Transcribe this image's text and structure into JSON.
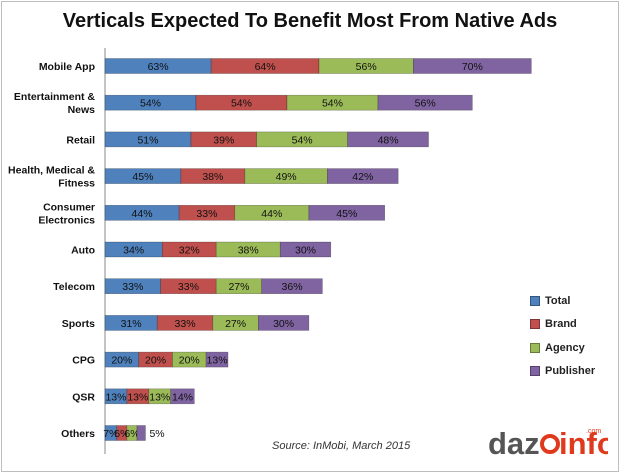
{
  "chart_data": {
    "type": "bar",
    "orientation": "horizontal",
    "stacked": true,
    "title": "Verticals Expected To Benefit Most From Native Ads",
    "categories": [
      "Mobile App",
      "Entertainment & News",
      "Retail",
      "Health, Medical & Fitness",
      "Consumer Electronics",
      "Auto",
      "Telecom",
      "Sports",
      "CPG",
      "QSR",
      "Others"
    ],
    "category_lines": [
      [
        "Mobile App"
      ],
      [
        "Entertainment &",
        "News"
      ],
      [
        "Retail"
      ],
      [
        "Health, Medical &",
        "Fitness"
      ],
      [
        "Consumer",
        "Electronics"
      ],
      [
        "Auto"
      ],
      [
        "Telecom"
      ],
      [
        "Sports"
      ],
      [
        "CPG"
      ],
      [
        "QSR"
      ],
      [
        "Others"
      ]
    ],
    "series": [
      {
        "name": "Total",
        "color": "#4f81bd",
        "values": [
          63,
          54,
          51,
          45,
          44,
          34,
          33,
          31,
          20,
          13,
          7
        ]
      },
      {
        "name": "Brand",
        "color": "#c0504d",
        "values": [
          64,
          54,
          39,
          38,
          33,
          32,
          33,
          33,
          20,
          13,
          6
        ]
      },
      {
        "name": "Agency",
        "color": "#9bbb59",
        "values": [
          56,
          54,
          54,
          49,
          44,
          38,
          27,
          27,
          20,
          13,
          6
        ]
      },
      {
        "name": "Publisher",
        "color": "#8064a2",
        "values": [
          70,
          56,
          48,
          42,
          45,
          30,
          36,
          30,
          13,
          14,
          5
        ]
      }
    ],
    "value_suffix": "%",
    "legend_position": "right",
    "grid": false
  },
  "source": "Source: InMobi, March 2015",
  "logo": {
    "text_left": "daz",
    "text_right": "info",
    "suffix": ".com"
  }
}
